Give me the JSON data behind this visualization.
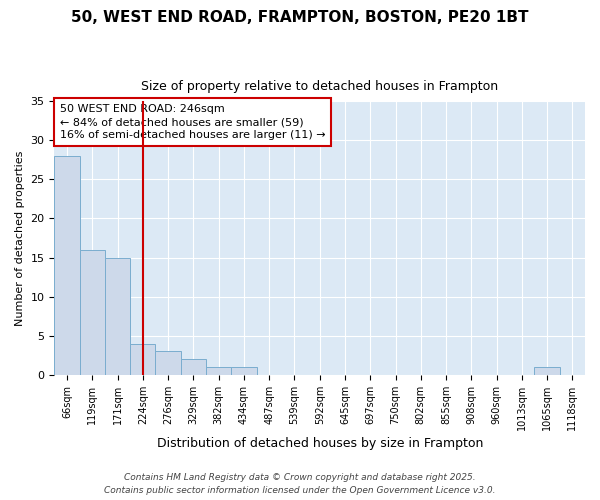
{
  "title_line1": "50, WEST END ROAD, FRAMPTON, BOSTON, PE20 1BT",
  "title_line2": "Size of property relative to detached houses in Frampton",
  "xlabel": "Distribution of detached houses by size in Frampton",
  "ylabel": "Number of detached properties",
  "categories": [
    "66sqm",
    "119sqm",
    "171sqm",
    "224sqm",
    "276sqm",
    "329sqm",
    "382sqm",
    "434sqm",
    "487sqm",
    "539sqm",
    "592sqm",
    "645sqm",
    "697sqm",
    "750sqm",
    "802sqm",
    "855sqm",
    "908sqm",
    "960sqm",
    "1013sqm",
    "1065sqm",
    "1118sqm"
  ],
  "values": [
    28,
    16,
    15,
    4,
    3,
    2,
    1,
    1,
    0,
    0,
    0,
    0,
    0,
    0,
    0,
    0,
    0,
    0,
    0,
    1,
    0
  ],
  "bar_color": "#cdd9ea",
  "bar_edge_color": "#7aadcf",
  "plot_background_color": "#dce9f5",
  "figure_background_color": "#ffffff",
  "grid_color": "#ffffff",
  "vline_x": 3.0,
  "vline_color": "#cc0000",
  "annotation_text": "50 WEST END ROAD: 246sqm\n← 84% of detached houses are smaller (59)\n16% of semi-detached houses are larger (11) →",
  "annotation_box_color": "#ffffff",
  "annotation_box_edge": "#cc0000",
  "annotation_fontsize": 8,
  "footer_line1": "Contains HM Land Registry data © Crown copyright and database right 2025.",
  "footer_line2": "Contains public sector information licensed under the Open Government Licence v3.0.",
  "ylim": [
    0,
    35
  ],
  "yticks": [
    0,
    5,
    10,
    15,
    20,
    25,
    30,
    35
  ]
}
